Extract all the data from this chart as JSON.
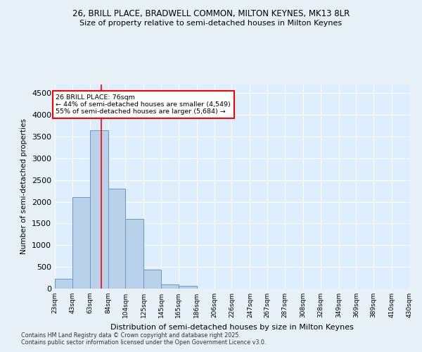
{
  "title1": "26, BRILL PLACE, BRADWELL COMMON, MILTON KEYNES, MK13 8LR",
  "title2": "Size of property relative to semi-detached houses in Milton Keynes",
  "xlabel": "Distribution of semi-detached houses by size in Milton Keynes",
  "ylabel": "Number of semi-detached properties",
  "footnote1": "Contains HM Land Registry data © Crown copyright and database right 2025.",
  "footnote2": "Contains public sector information licensed under the Open Government Licence v3.0.",
  "bar_color": "#b8d0e8",
  "bar_edge_color": "#6699cc",
  "bg_color": "#ccdff0",
  "plot_bg_color": "#ddeeff",
  "grid_color": "#ffffff",
  "fig_bg_color": "#e8f0f8",
  "red_line_x": 76,
  "annotation_line1": "26 BRILL PLACE: 76sqm",
  "annotation_line2": "← 44% of semi-detached houses are smaller (4,549)",
  "annotation_line3": "55% of semi-detached houses are larger (5,684) →",
  "bin_edges": [
    23,
    43,
    63,
    84,
    104,
    125,
    145,
    165,
    186,
    206,
    226,
    247,
    267,
    287,
    308,
    328,
    349,
    369,
    389,
    410,
    430
  ],
  "bin_labels": [
    "23sqm",
    "43sqm",
    "63sqm",
    "84sqm",
    "104sqm",
    "125sqm",
    "145sqm",
    "165sqm",
    "186sqm",
    "206sqm",
    "226sqm",
    "247sqm",
    "267sqm",
    "287sqm",
    "308sqm",
    "328sqm",
    "349sqm",
    "369sqm",
    "389sqm",
    "410sqm",
    "430sqm"
  ],
  "bar_heights": [
    230,
    2100,
    3650,
    2300,
    1600,
    430,
    100,
    60,
    0,
    0,
    0,
    0,
    0,
    0,
    0,
    0,
    0,
    0,
    0,
    0
  ],
  "ylim": [
    0,
    4700
  ],
  "yticks": [
    0,
    500,
    1000,
    1500,
    2000,
    2500,
    3000,
    3500,
    4000,
    4500
  ]
}
